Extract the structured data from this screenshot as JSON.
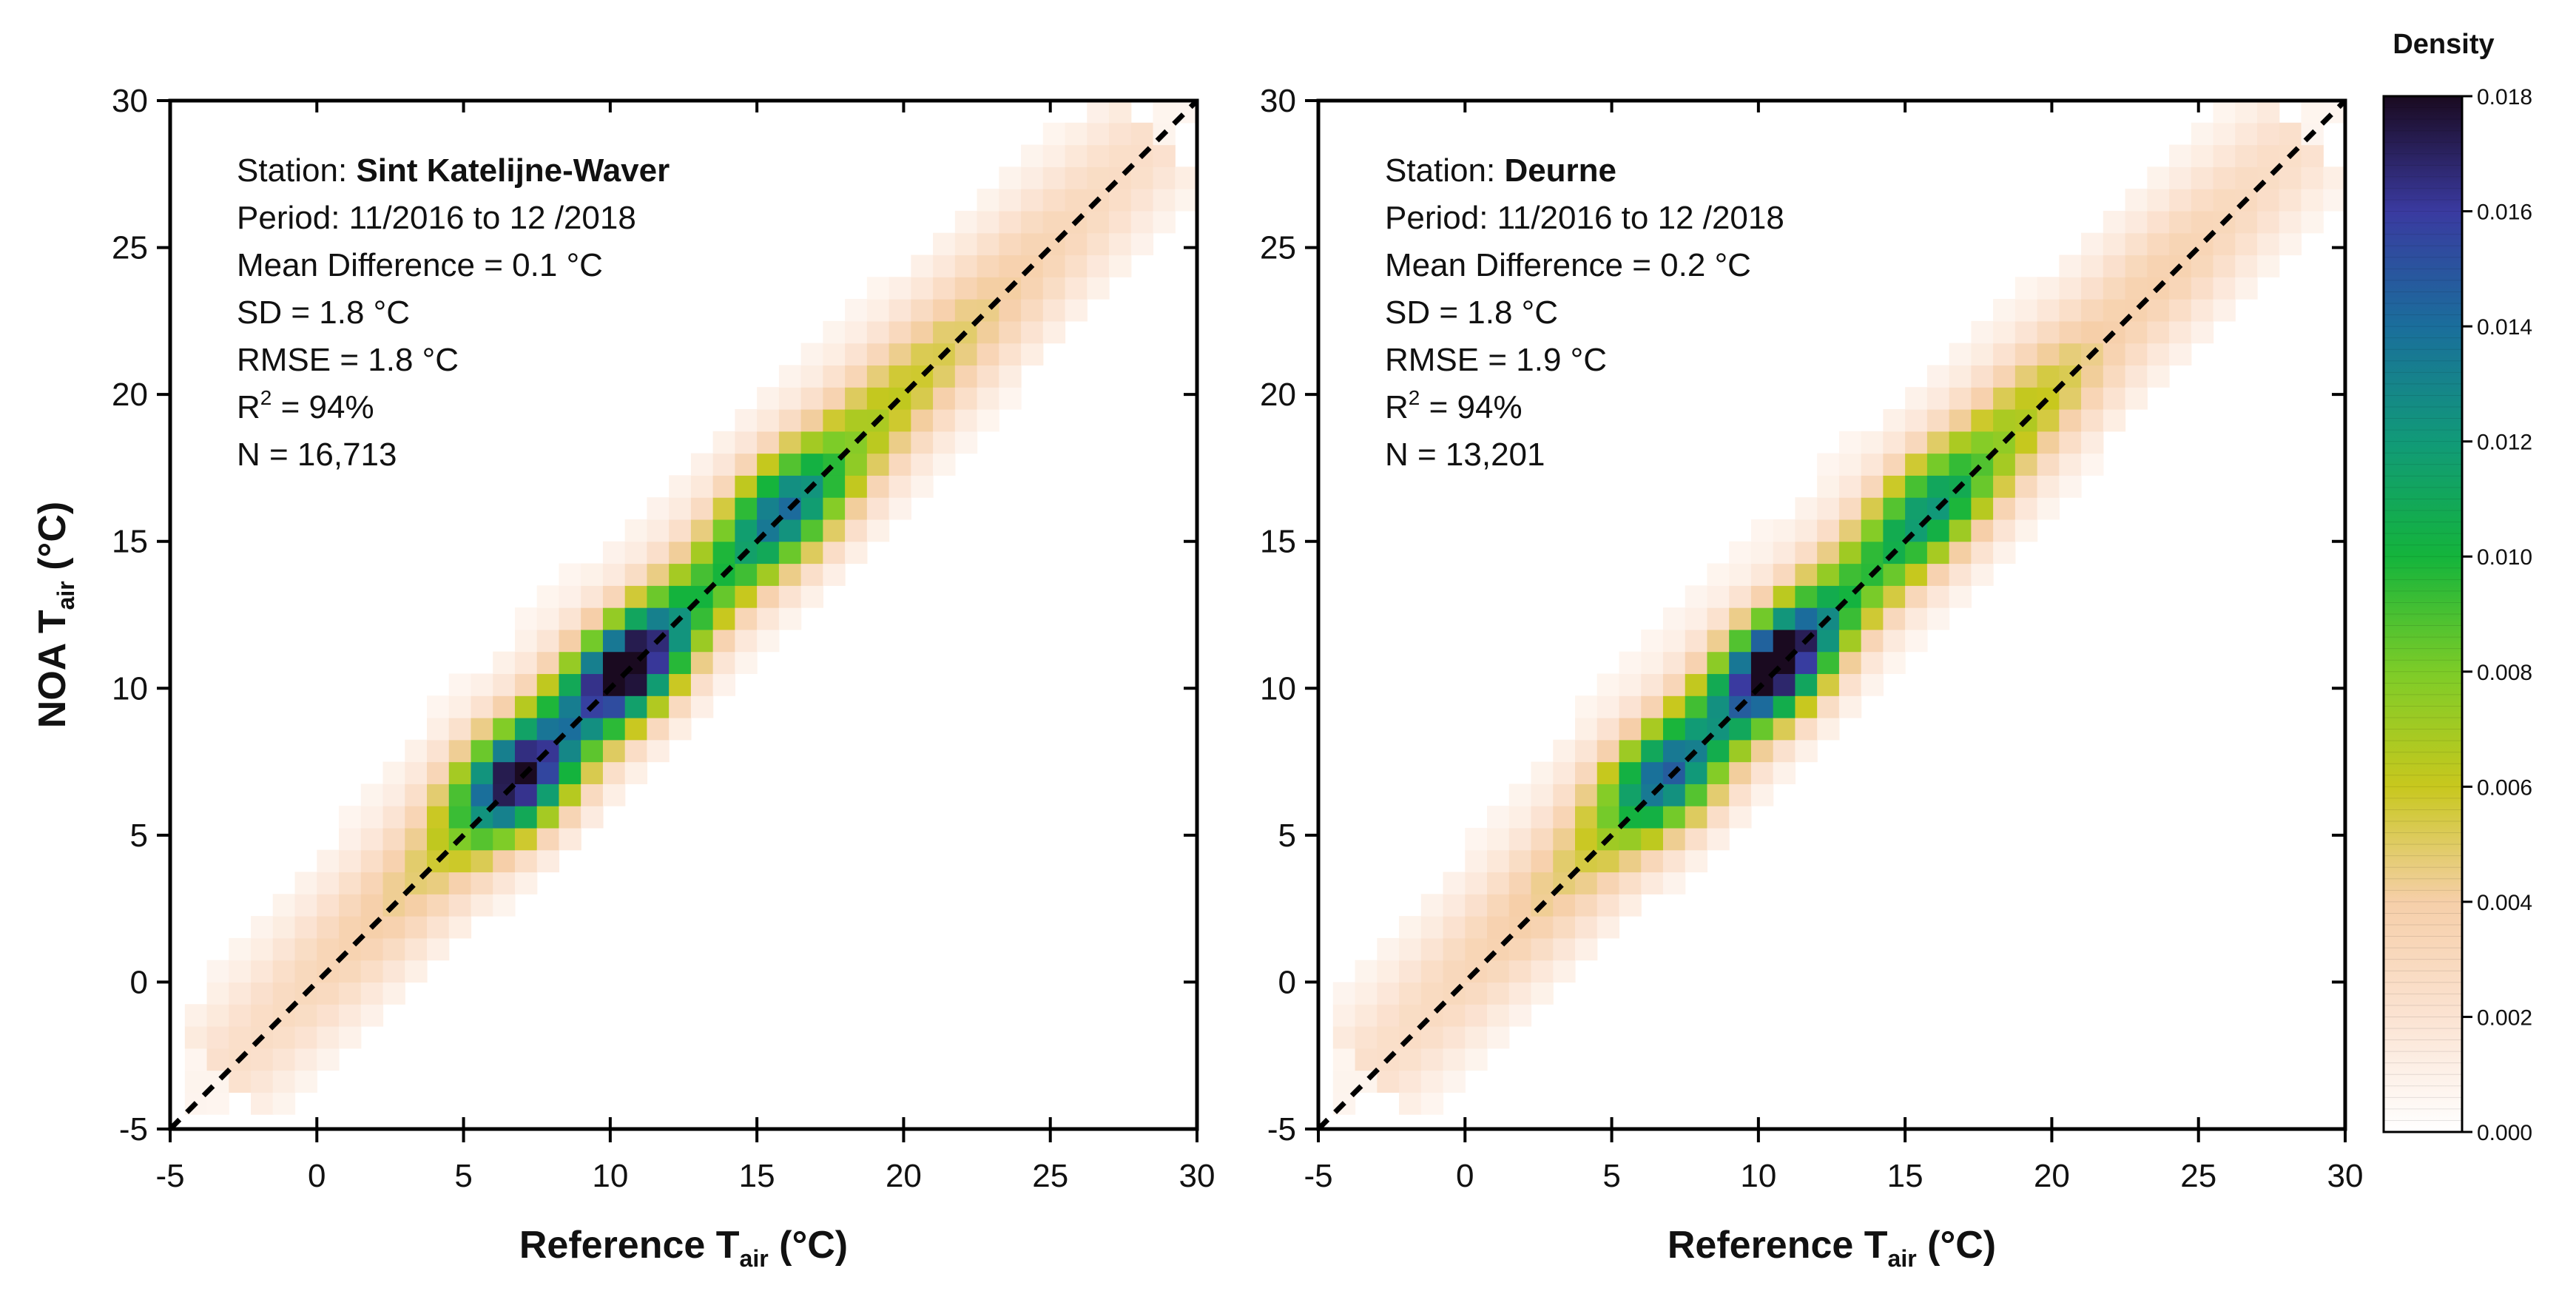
{
  "chart_data": [
    {
      "type": "heatmap",
      "panel": "left",
      "xlabel_main": "Reference T",
      "xlabel_sub": "air",
      "xlabel_unit": " (°C)",
      "ylabel_main": "NOA T",
      "ylabel_sub": "air",
      "ylabel_unit": " (°C)",
      "xlim": [
        -5,
        30
      ],
      "ylim": [
        -5,
        30
      ],
      "xticks": [
        "-5",
        "0",
        "5",
        "10",
        "15",
        "20",
        "25",
        "30"
      ],
      "yticks": [
        "-5",
        "0",
        "5",
        "10",
        "15",
        "20",
        "25",
        "30"
      ],
      "reference_line": "1:1 (dashed)",
      "annotations": {
        "station_label": "Station: ",
        "station_name": "Sint Katelijne-Waver",
        "period": "Period: 11/2016 to 12 /2018",
        "mean_difference": "Mean Difference = 0.1 °C",
        "sd": "SD = 1.8 °C",
        "rmse": "RMSE = 1.8 °C",
        "r2_prefix": "R",
        "r2_sup": "2",
        "r2_suffix": " = 94%",
        "n": "N = 16,713"
      },
      "density_ridge": {
        "offset_c": 0.1,
        "spread_sd_c": 1.8,
        "peaks": [
          {
            "x": 7.0,
            "y": 6.8,
            "density": 0.018
          },
          {
            "x": 10.8,
            "y": 10.4,
            "density": 0.018
          },
          {
            "x": 16.0,
            "y": 16.0,
            "density": 0.012
          },
          {
            "x": 22.5,
            "y": 21.5,
            "density": 0.006
          }
        ]
      }
    },
    {
      "type": "heatmap",
      "panel": "right",
      "xlabel_main": "Reference T",
      "xlabel_sub": "air",
      "xlabel_unit": " (°C)",
      "ylabel_main": "",
      "ylabel_sub": "",
      "ylabel_unit": "",
      "xlim": [
        -5,
        30
      ],
      "ylim": [
        -5,
        30
      ],
      "xticks": [
        "-5",
        "0",
        "5",
        "10",
        "15",
        "20",
        "25",
        "30"
      ],
      "yticks": [
        "-5",
        "0",
        "5",
        "10",
        "15",
        "20",
        "25",
        "30"
      ],
      "reference_line": "1:1 (dashed)",
      "annotations": {
        "station_label": "Station: ",
        "station_name": "Deurne",
        "period": "Period: 11/2016 to 12 /2018",
        "mean_difference": "Mean Difference = 0.2 °C",
        "sd": "SD = 1.8 °C",
        "rmse": "RMSE = 1.9 °C",
        "r2_prefix": "R",
        "r2_sup": "2",
        "r2_suffix": " = 94%",
        "n": "N = 13,201"
      },
      "density_ridge": {
        "offset_c": 0.2,
        "spread_sd_c": 1.8,
        "peaks": [
          {
            "x": 7.0,
            "y": 6.8,
            "density": 0.014
          },
          {
            "x": 10.8,
            "y": 10.6,
            "density": 0.018
          },
          {
            "x": 16.0,
            "y": 16.0,
            "density": 0.01
          },
          {
            "x": 22.0,
            "y": 22.0,
            "density": 0.005
          }
        ]
      }
    }
  ],
  "colorbar": {
    "title": "Density",
    "min": 0.0,
    "max": 0.018,
    "ticks": [
      "0.000",
      "0.002",
      "0.004",
      "0.006",
      "0.008",
      "0.010",
      "0.012",
      "0.014",
      "0.016",
      "0.018"
    ],
    "colors": [
      "#ffffff",
      "#fbe3d2",
      "#f6cfa9",
      "#c8c81e",
      "#7dcc28",
      "#14b43c",
      "#119a78",
      "#1a6e9c",
      "#3a3aa0",
      "#1a0a20"
    ]
  }
}
